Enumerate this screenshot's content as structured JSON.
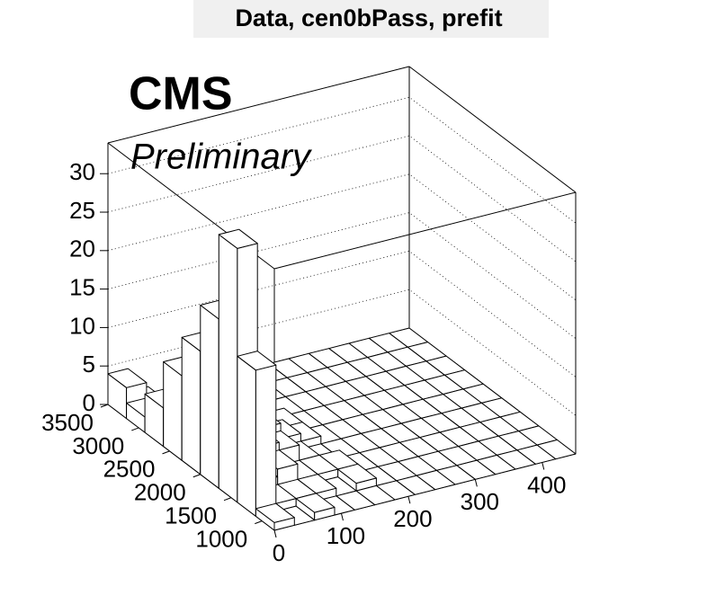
{
  "chart_data": {
    "type": "lego",
    "title": "Data, cen0bPass, prefit",
    "annotations": [
      "CMS",
      "Preliminary"
    ],
    "x_bins": [
      0,
      30,
      60,
      90,
      120,
      150,
      180,
      210,
      240,
      270,
      300,
      330,
      360,
      390,
      420,
      450
    ],
    "y_bins": [
      800,
      1100,
      1400,
      1700,
      2000,
      2300,
      2600,
      2900,
      3200,
      3500
    ],
    "values": [
      [
        1,
        0,
        1,
        0,
        0,
        0,
        0,
        0,
        0,
        0,
        0,
        0,
        0,
        0,
        0
      ],
      [
        19,
        1,
        1,
        1,
        0,
        1,
        0,
        0,
        0,
        0,
        0,
        0,
        0,
        0,
        0
      ],
      [
        33,
        2,
        3,
        1,
        1,
        1,
        0,
        0,
        0,
        0,
        0,
        0,
        0,
        0,
        0
      ],
      [
        22,
        2,
        4,
        3,
        1,
        0,
        0,
        0,
        0,
        0,
        0,
        0,
        0,
        0,
        0
      ],
      [
        16,
        3,
        6,
        4,
        2,
        1,
        0,
        0,
        0,
        0,
        0,
        0,
        0,
        0,
        0
      ],
      [
        11,
        2,
        3,
        2,
        1,
        1,
        0,
        0,
        0,
        0,
        0,
        0,
        0,
        0,
        0
      ],
      [
        5,
        1,
        2,
        1,
        1,
        0,
        0,
        0,
        0,
        0,
        0,
        0,
        0,
        0,
        0
      ],
      [
        2,
        2,
        1,
        0,
        0,
        0,
        0,
        0,
        0,
        0,
        0,
        0,
        0,
        0,
        0
      ],
      [
        4,
        1,
        0,
        0,
        0,
        0,
        0,
        0,
        0,
        0,
        0,
        0,
        0,
        0,
        0
      ]
    ],
    "color": "#ffffff",
    "xlim": [
      0,
      450
    ],
    "ylim": [
      800,
      3500
    ],
    "zlim": [
      0,
      34
    ],
    "xticks": [
      0,
      100,
      200,
      300,
      400
    ],
    "yticks": [
      1000,
      1500,
      2000,
      2500,
      3000,
      3500
    ],
    "zticks": [
      0,
      5,
      10,
      15,
      20,
      25,
      30
    ],
    "grid": true
  }
}
